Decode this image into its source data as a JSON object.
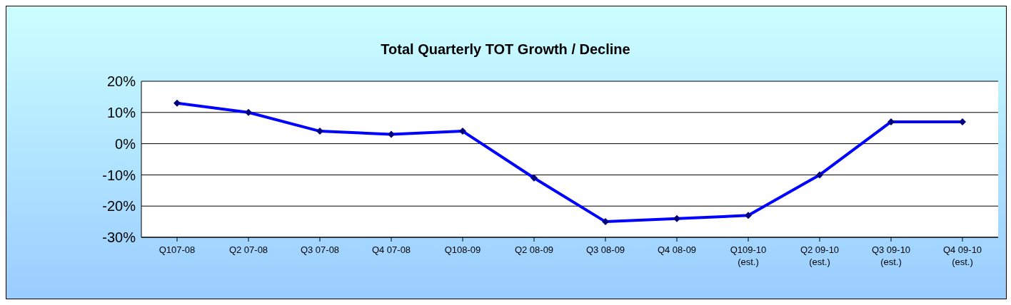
{
  "chart_data": {
    "type": "line",
    "title": "Total Quarterly TOT Growth / Decline",
    "categories": [
      "Q107-08",
      "Q2 07-08",
      "Q3 07-08",
      "Q4 07-08",
      "Q108-09",
      "Q2 08-09",
      "Q3 08-09",
      "Q4 08-09",
      "Q109-10\n(est.)",
      "Q2 09-10\n(est.)",
      "Q3 09-10\n(est.)",
      "Q4 09-10\n(est.)"
    ],
    "series": [
      {
        "color": "#0000ff",
        "values": [
          13,
          10,
          4,
          3,
          4,
          -11,
          -25,
          -24,
          -23,
          -10,
          7,
          7
        ]
      }
    ],
    "ylim": [
      -30,
      20
    ],
    "yticks": [
      {
        "value": -30,
        "label": "-30%"
      },
      {
        "value": -20,
        "label": "-20%"
      },
      {
        "value": -10,
        "label": "-10%"
      },
      {
        "value": 0,
        "label": "0%"
      },
      {
        "value": 10,
        "label": "10%"
      },
      {
        "value": 20,
        "label": "20%"
      }
    ],
    "grid": "y",
    "legend": false,
    "marker": "diamond",
    "line_style": "solid"
  }
}
